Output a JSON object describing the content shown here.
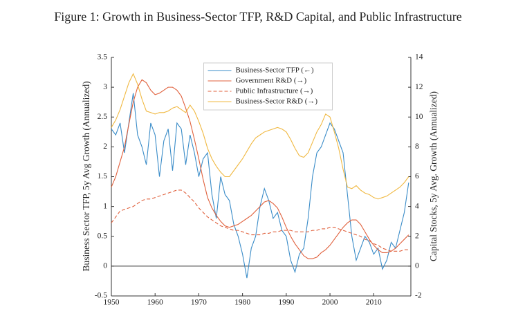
{
  "chart_data": {
    "type": "line",
    "title": "Figure 1: Growth in Business-Sector TFP, R&D Capital, and Public Infrastructure",
    "ylabel": "Business Sector TFP, 5y Avg Growth (Annualized)",
    "y2label": "Capital Stocks, 5y Avg. Growth (Annualized)",
    "x": [
      1950,
      1951,
      1952,
      1953,
      1954,
      1955,
      1956,
      1957,
      1958,
      1959,
      1960,
      1961,
      1962,
      1963,
      1964,
      1965,
      1966,
      1967,
      1968,
      1969,
      1970,
      1971,
      1972,
      1973,
      1974,
      1975,
      1976,
      1977,
      1978,
      1979,
      1980,
      1981,
      1982,
      1983,
      1984,
      1985,
      1986,
      1987,
      1988,
      1989,
      1990,
      1991,
      1992,
      1993,
      1994,
      1995,
      1996,
      1997,
      1998,
      1999,
      2000,
      2001,
      2002,
      2003,
      2004,
      2005,
      2006,
      2007,
      2008,
      2009,
      2010,
      2011,
      2012,
      2013,
      2014,
      2015,
      2016,
      2017,
      2018
    ],
    "xlim": [
      1950,
      2018.5
    ],
    "xticks": [
      1950,
      1960,
      1970,
      1980,
      1990,
      2000,
      2010
    ],
    "ylim": [
      -0.5,
      3.5
    ],
    "yticks": [
      -0.5,
      0,
      0.5,
      1,
      1.5,
      2,
      2.5,
      3,
      3.5
    ],
    "y2lim": [
      -2,
      14
    ],
    "y2ticks": [
      -2,
      0,
      2,
      4,
      6,
      8,
      10,
      12,
      14
    ],
    "hline": 0,
    "legend": "upper center",
    "series": [
      {
        "name": "Business-Sector TFP (←)",
        "color": "#3a8cc8",
        "axis": "y",
        "values": [
          2.3,
          2.2,
          2.4,
          1.9,
          2.4,
          2.9,
          2.2,
          2.0,
          1.7,
          2.4,
          2.2,
          1.5,
          2.1,
          2.3,
          1.6,
          2.4,
          2.3,
          1.7,
          2.2,
          1.9,
          1.5,
          1.8,
          1.9,
          1.2,
          0.8,
          1.5,
          1.2,
          1.1,
          0.7,
          0.5,
          0.2,
          -0.2,
          0.3,
          0.5,
          1.0,
          1.3,
          1.1,
          0.8,
          0.9,
          0.6,
          0.5,
          0.1,
          -0.1,
          0.2,
          0.3,
          0.8,
          1.5,
          1.9,
          2.0,
          2.2,
          2.4,
          2.3,
          2.1,
          1.9,
          1.2,
          0.5,
          0.1,
          0.3,
          0.5,
          0.4,
          0.2,
          0.3,
          -0.05,
          0.1,
          0.4,
          0.3,
          0.6,
          0.9,
          1.4
        ]
      },
      {
        "name": "Government R&D (→)",
        "color": "#e0603c",
        "axis": "y2",
        "values": [
          5.3,
          6.0,
          7.0,
          8.0,
          9.5,
          11.0,
          12.0,
          12.5,
          12.3,
          11.8,
          11.5,
          11.6,
          11.8,
          12.0,
          12.0,
          11.8,
          11.4,
          10.6,
          9.7,
          8.5,
          7.2,
          5.8,
          4.6,
          3.9,
          3.4,
          3.0,
          2.7,
          2.6,
          2.7,
          2.8,
          3.0,
          3.2,
          3.4,
          3.7,
          4.0,
          4.3,
          4.4,
          4.2,
          3.9,
          3.3,
          2.6,
          2.0,
          1.5,
          1.1,
          0.7,
          0.5,
          0.5,
          0.6,
          0.9,
          1.1,
          1.4,
          1.8,
          2.2,
          2.6,
          2.9,
          3.1,
          3.1,
          2.8,
          2.3,
          1.8,
          1.4,
          1.1,
          0.9,
          0.9,
          1.0,
          1.2,
          1.5,
          1.8,
          2.1
        ]
      },
      {
        "name": "Public Infrastructure (→)",
        "color": "#e0603c",
        "axis": "y2",
        "dashed": true,
        "values": [
          2.9,
          3.3,
          3.7,
          3.8,
          3.9,
          4.0,
          4.2,
          4.4,
          4.5,
          4.5,
          4.6,
          4.7,
          4.8,
          4.9,
          5.0,
          5.1,
          5.1,
          4.9,
          4.6,
          4.3,
          3.9,
          3.6,
          3.3,
          3.1,
          2.9,
          2.7,
          2.6,
          2.5,
          2.4,
          2.4,
          2.3,
          2.2,
          2.1,
          2.1,
          2.1,
          2.2,
          2.2,
          2.3,
          2.3,
          2.4,
          2.4,
          2.4,
          2.3,
          2.3,
          2.3,
          2.3,
          2.4,
          2.4,
          2.5,
          2.5,
          2.6,
          2.6,
          2.5,
          2.4,
          2.3,
          2.2,
          2.1,
          2.0,
          1.8,
          1.7,
          1.5,
          1.4,
          1.2,
          1.1,
          1.0,
          1.0,
          1.0,
          1.1,
          1.1
        ]
      },
      {
        "name": "Business-Sector R&D (→)",
        "color": "#f0b840",
        "axis": "y2",
        "values": [
          9.3,
          9.8,
          10.5,
          11.4,
          12.3,
          12.9,
          12.2,
          11.2,
          10.4,
          10.3,
          10.2,
          10.3,
          10.3,
          10.4,
          10.6,
          10.7,
          10.5,
          10.3,
          10.8,
          10.4,
          9.7,
          8.9,
          7.9,
          7.2,
          6.7,
          6.3,
          6.0,
          6.0,
          6.4,
          6.8,
          7.2,
          7.7,
          8.2,
          8.6,
          8.8,
          9.0,
          9.1,
          9.2,
          9.3,
          9.2,
          9.0,
          8.5,
          7.9,
          7.4,
          7.3,
          7.6,
          8.3,
          9.0,
          9.5,
          10.2,
          10.0,
          9.0,
          7.9,
          6.5,
          5.3,
          5.2,
          5.4,
          5.1,
          4.9,
          4.8,
          4.6,
          4.5,
          4.6,
          4.7,
          4.9,
          5.1,
          5.3,
          5.6,
          6.0
        ]
      }
    ]
  }
}
